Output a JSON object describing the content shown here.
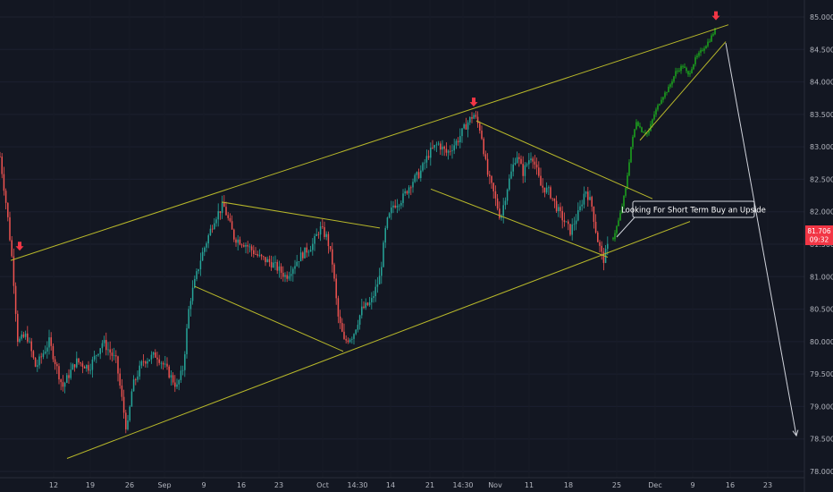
{
  "chart_data": {
    "type": "candlestick",
    "title": "",
    "y_ticks": [
      "85.000",
      "84.500",
      "84.000",
      "83.500",
      "83.000",
      "82.500",
      "82.000",
      "81.500",
      "81.000",
      "80.500",
      "80.000",
      "79.500",
      "79.000",
      "78.500",
      "78.000"
    ],
    "x_ticks": [
      "12",
      "19",
      "26",
      "Sep",
      "9",
      "16",
      "23",
      "Oct",
      "14:30",
      "14",
      "21",
      "14:30",
      "Nov",
      "11",
      "18",
      "25",
      "Dec",
      "9",
      "16",
      "23"
    ],
    "ylim": [
      77.95,
      85.15
    ],
    "last_price": "81.706",
    "countdown": "09:32",
    "annotation": "Looking For Short Term Buy an Upside",
    "colors": {
      "up": "#26a69a",
      "down": "#ef5350",
      "projection": "#1db41d",
      "lines": "#b8b82a",
      "arrow": "#d1d4dc",
      "marker": "#f23645",
      "background": "#131722"
    },
    "price_path": [
      [
        0,
        82.85
      ],
      [
        8,
        82.0
      ],
      [
        14,
        81.2
      ],
      [
        20,
        80.0
      ],
      [
        30,
        80.1
      ],
      [
        40,
        79.6
      ],
      [
        55,
        80.0
      ],
      [
        70,
        79.3
      ],
      [
        85,
        79.7
      ],
      [
        100,
        79.6
      ],
      [
        115,
        80.0
      ],
      [
        130,
        79.7
      ],
      [
        142,
        78.6
      ],
      [
        148,
        79.3
      ],
      [
        160,
        79.7
      ],
      [
        175,
        79.8
      ],
      [
        185,
        79.6
      ],
      [
        198,
        79.3
      ],
      [
        205,
        79.6
      ],
      [
        212,
        80.6
      ],
      [
        225,
        81.3
      ],
      [
        240,
        81.9
      ],
      [
        250,
        82.1
      ],
      [
        262,
        81.6
      ],
      [
        275,
        81.5
      ],
      [
        290,
        81.3
      ],
      [
        305,
        81.2
      ],
      [
        320,
        81.0
      ],
      [
        335,
        81.3
      ],
      [
        350,
        81.5
      ],
      [
        358,
        81.75
      ],
      [
        366,
        81.6
      ],
      [
        372,
        81.2
      ],
      [
        378,
        80.4
      ],
      [
        385,
        80.0
      ],
      [
        395,
        80.1
      ],
      [
        405,
        80.5
      ],
      [
        415,
        80.6
      ],
      [
        425,
        81.0
      ],
      [
        432,
        81.8
      ],
      [
        440,
        82.1
      ],
      [
        450,
        82.2
      ],
      [
        460,
        82.45
      ],
      [
        470,
        82.6
      ],
      [
        480,
        82.9
      ],
      [
        490,
        83.05
      ],
      [
        500,
        82.9
      ],
      [
        512,
        83.1
      ],
      [
        522,
        83.35
      ],
      [
        530,
        83.5
      ],
      [
        538,
        83.25
      ],
      [
        545,
        82.6
      ],
      [
        552,
        82.3
      ],
      [
        560,
        81.9
      ],
      [
        568,
        82.4
      ],
      [
        578,
        82.9
      ],
      [
        585,
        82.6
      ],
      [
        595,
        82.9
      ],
      [
        605,
        82.4
      ],
      [
        615,
        82.3
      ],
      [
        625,
        82.0
      ],
      [
        638,
        81.7
      ],
      [
        648,
        82.0
      ],
      [
        655,
        82.35
      ],
      [
        662,
        82.1
      ],
      [
        668,
        81.6
      ],
      [
        675,
        81.25
      ],
      [
        682,
        81.55
      ]
    ],
    "projection_path": [
      [
        686,
        81.6
      ],
      [
        693,
        81.9
      ],
      [
        700,
        82.35
      ],
      [
        706,
        83.0
      ],
      [
        712,
        83.4
      ],
      [
        718,
        83.25
      ],
      [
        725,
        83.2
      ],
      [
        732,
        83.5
      ],
      [
        740,
        83.75
      ],
      [
        748,
        83.9
      ],
      [
        756,
        84.15
      ],
      [
        764,
        84.25
      ],
      [
        770,
        84.1
      ],
      [
        778,
        84.35
      ],
      [
        786,
        84.5
      ],
      [
        794,
        84.65
      ],
      [
        800,
        84.8
      ]
    ],
    "trendlines": [
      {
        "name": "channel-top",
        "points": [
          [
            12,
            81.25
          ],
          [
            815,
            84.88
          ]
        ]
      },
      {
        "name": "channel-bottom",
        "points": [
          [
            75,
            78.2
          ],
          [
            772,
            81.85
          ]
        ]
      },
      {
        "name": "flag-1-top",
        "points": [
          [
            248,
            82.15
          ],
          [
            425,
            81.75
          ]
        ]
      },
      {
        "name": "flag-1-bottom",
        "points": [
          [
            218,
            80.85
          ],
          [
            384,
            79.85
          ]
        ]
      },
      {
        "name": "flag-2-top",
        "points": [
          [
            533,
            83.4
          ],
          [
            730,
            82.2
          ]
        ]
      },
      {
        "name": "flag-2-bottom",
        "points": [
          [
            482,
            82.35
          ],
          [
            680,
            81.3
          ]
        ]
      },
      {
        "name": "rising-wedge",
        "points": [
          [
            716,
            83.1
          ],
          [
            812,
            84.62
          ]
        ]
      }
    ],
    "markers": [
      {
        "name": "top-marker-1",
        "x": 22,
        "y": 81.4
      },
      {
        "name": "top-marker-2",
        "x": 530,
        "y": 83.62
      },
      {
        "name": "top-marker-3",
        "x": 801,
        "y": 84.95
      }
    ],
    "forecast_arrow": [
      [
        812,
        84.6
      ],
      [
        891,
        78.55
      ]
    ]
  }
}
